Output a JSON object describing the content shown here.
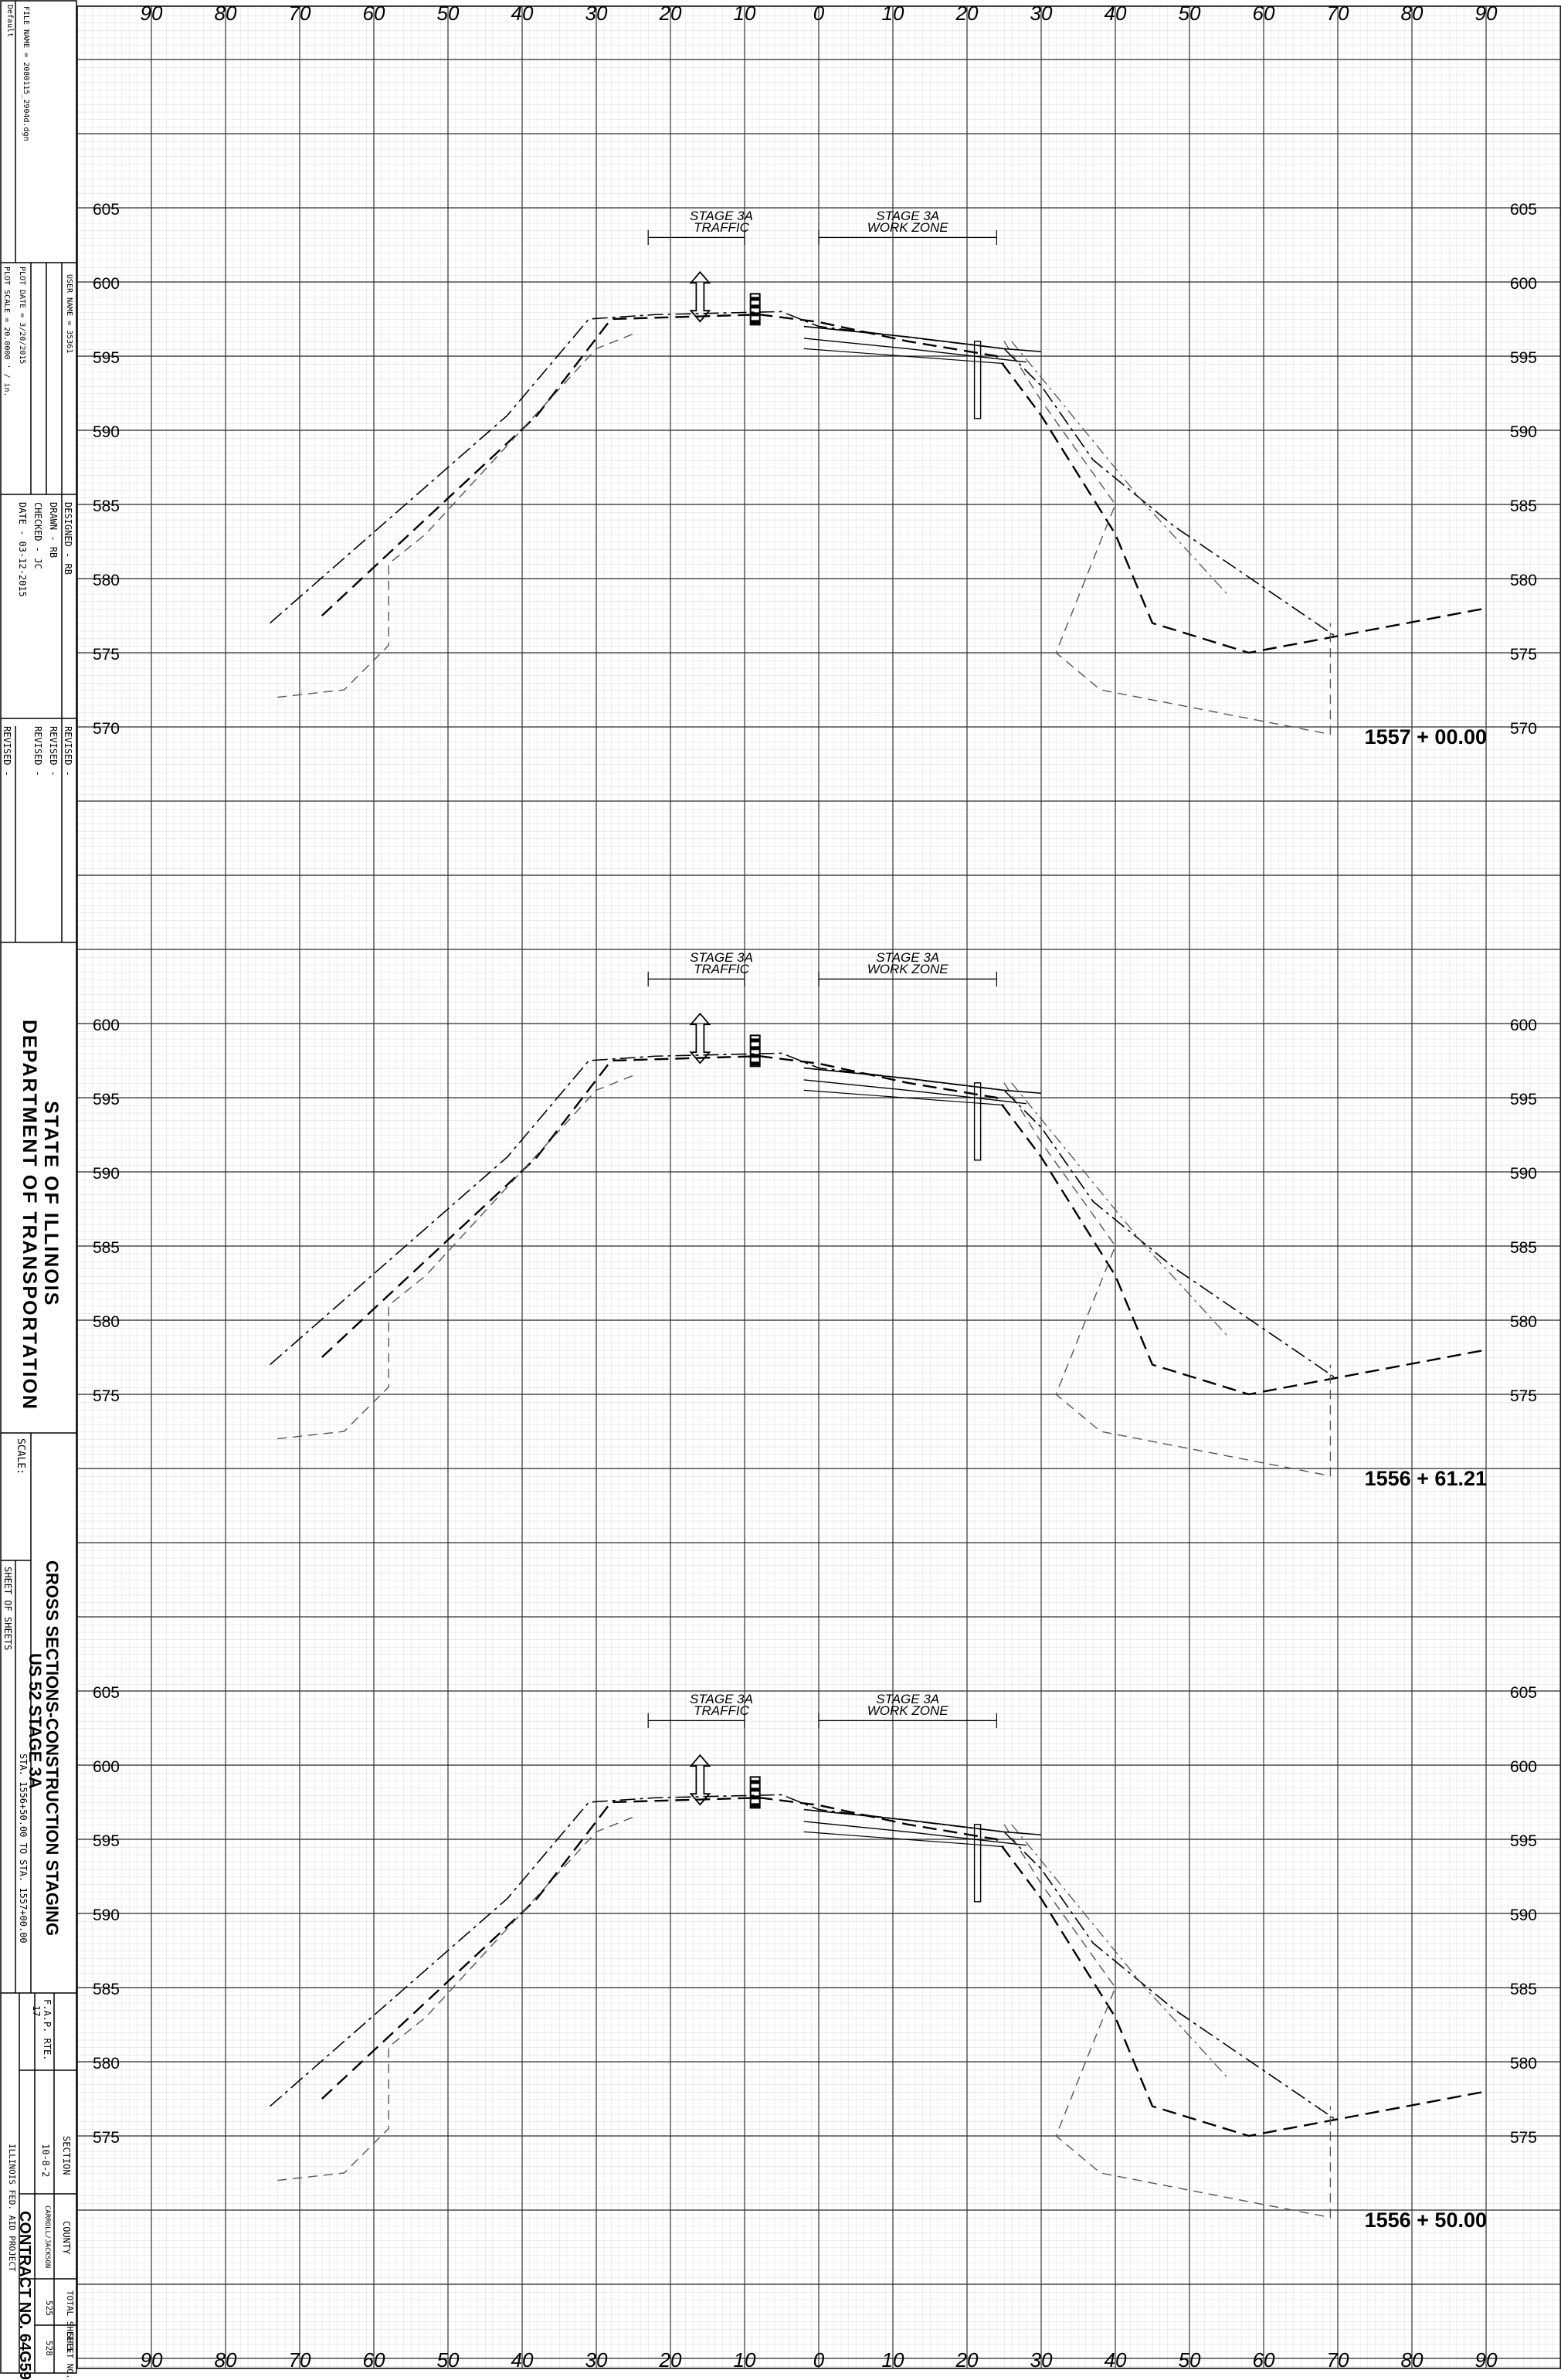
{
  "title_block": {
    "default_label": "Default",
    "file_name": "FILE NAME = 2080115_2904d.dgn",
    "user_name": "USER NAME = 35361",
    "plot_scale": "PLOT SCALE = 20.0000 ' / in.",
    "plot_date": "PLOT DATE = 3/20/2015",
    "designed": "DESIGNED  -  RB",
    "drawn": "DRAWN  -  RB",
    "checked": "CHECKED  -  JC",
    "date": "DATE  -  03-12-2015",
    "revised": [
      "REVISED  -",
      "REVISED  -",
      "REVISED  -",
      "REVISED  -"
    ],
    "agency_line1": "STATE OF ILLINOIS",
    "agency_line2": "DEPARTMENT OF TRANSPORTATION",
    "scale_label": "SCALE:",
    "sheet_title_line1": "CROSS SECTIONS-CONSTRUCTION STAGING",
    "sheet_title_line2": "US 52 STAGE 3A",
    "sheet_of": "SHEET      OF      SHEETS",
    "station_range": "STA. 1556+50.00   TO STA. 1557+00.00",
    "fap_rte_label": "F.A.P. RTE.",
    "fap_rte_value": "17",
    "section_label": "SECTION",
    "section_value": "10-8-2",
    "county_label": "COUNTY",
    "county_value": "CARROLL/JACKSON",
    "total_sheets_label": "TOTAL SHEETS",
    "total_sheets_value": "525",
    "sheet_no_label": "SHEET NO.",
    "sheet_no_value": "528",
    "contract_no": "CONTRACT NO. 64G59",
    "fed_aid": "ILLINOIS FED. AID PROJECT"
  },
  "offset_labels": [
    "90",
    "80",
    "70",
    "60",
    "50",
    "40",
    "30",
    "20",
    "10",
    "0",
    "10",
    "20",
    "30",
    "40",
    "50",
    "60",
    "70",
    "80",
    "90"
  ],
  "sections": [
    {
      "station": "1557 + 00.00",
      "elevation_labels": [
        "605",
        "600",
        "595",
        "590",
        "585",
        "580",
        "575",
        "570"
      ],
      "traffic_label_1": "STAGE 3A",
      "traffic_label_2": "TRAFFIC",
      "work_label_1": "STAGE 3A",
      "work_label_2": "WORK ZONE"
    },
    {
      "station": "1556 + 61.21",
      "elevation_labels": [
        "600",
        "595",
        "590",
        "585",
        "580",
        "575"
      ],
      "traffic_label_1": "STAGE 3A",
      "traffic_label_2": "TRAFFIC",
      "work_label_1": "STAGE 3A",
      "work_label_2": "WORK ZONE"
    },
    {
      "station": "1556 + 50.00",
      "elevation_labels": [
        "605",
        "600",
        "595",
        "590",
        "585",
        "580",
        "575"
      ],
      "traffic_label_1": "STAGE 3A",
      "traffic_label_2": "TRAFFIC",
      "work_label_1": "STAGE 3A",
      "work_label_2": "WORK ZONE"
    }
  ],
  "colors": {
    "line": "#000000",
    "minor_grid": "#c9c9c9",
    "major_grid": "#333333"
  }
}
